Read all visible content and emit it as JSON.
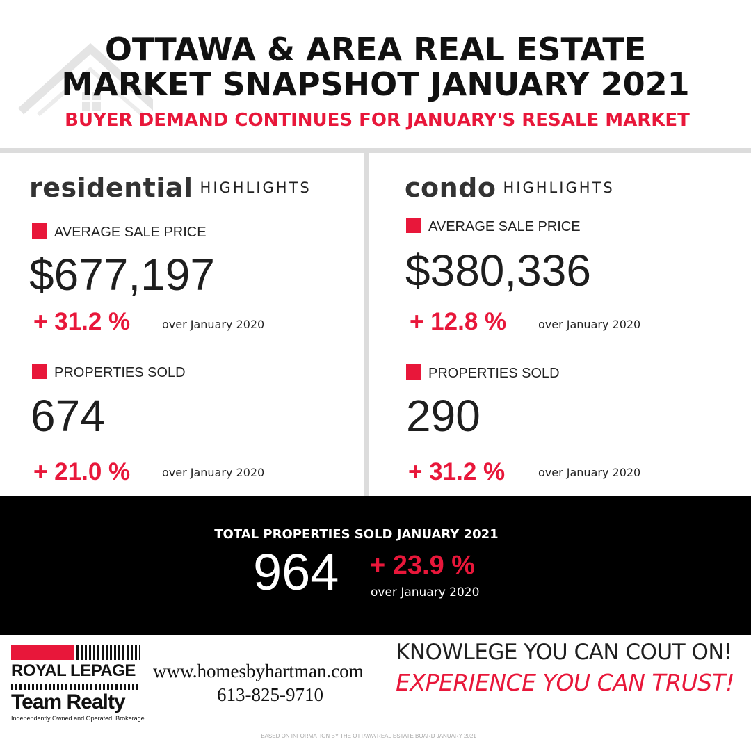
{
  "header": {
    "title_line1": "OTTAWA & AREA REAL ESTATE",
    "title_line2": "MARKET SNAPSHOT JANUARY 2021",
    "subtitle": "BUYER DEMAND CONTINUES FOR JANUARY'S RESALE MARKET",
    "watermark_icon": "house-icon"
  },
  "residential": {
    "heading_word": "residential",
    "heading_suffix": "HIGHLIGHTS",
    "avg_label": "AVERAGE SALE PRICE",
    "avg_value": "$677,197",
    "avg_change": "+ 31.2 %",
    "avg_change_note": "over January 2020",
    "sold_label": "PROPERTIES SOLD",
    "sold_value": "674",
    "sold_change": "+ 21.0 %",
    "sold_change_note": "over January 2020"
  },
  "condo": {
    "heading_word": "condo",
    "heading_suffix": "HIGHLIGHTS",
    "avg_label": "AVERAGE SALE PRICE",
    "avg_value": "$380,336",
    "avg_change": "+ 12.8 %",
    "avg_change_note": "over January 2020",
    "sold_label": "PROPERTIES SOLD",
    "sold_value": "290",
    "sold_change": "+ 31.2 %",
    "sold_change_note": "over January 2020"
  },
  "total": {
    "title": "TOTAL PROPERTIES SOLD JANUARY 2021",
    "value": "964",
    "change": "+ 23.9 %",
    "change_note": "over January 2020"
  },
  "footer": {
    "logo_line1": "ROYAL ",
    "logo_line1b": "LEPAGE",
    "logo_line2": "Team Realty",
    "logo_sub": "Independently Owned and Operated, Brokerage",
    "website": "www.homesbyhartman.com",
    "phone": "613-825-9710",
    "slogan1": "KNOWLEGE YOU CAN COUT ON!",
    "slogan2": "EXPERIENCE YOU CAN TRUST!",
    "source": "BASED ON INFORMATION BY THE OTTAWA REAL ESTATE BOARD JANUARY 2021"
  },
  "colors": {
    "accent_red": "#e8173a",
    "band_black": "#000000",
    "divider_gray": "#dcdcdc"
  }
}
